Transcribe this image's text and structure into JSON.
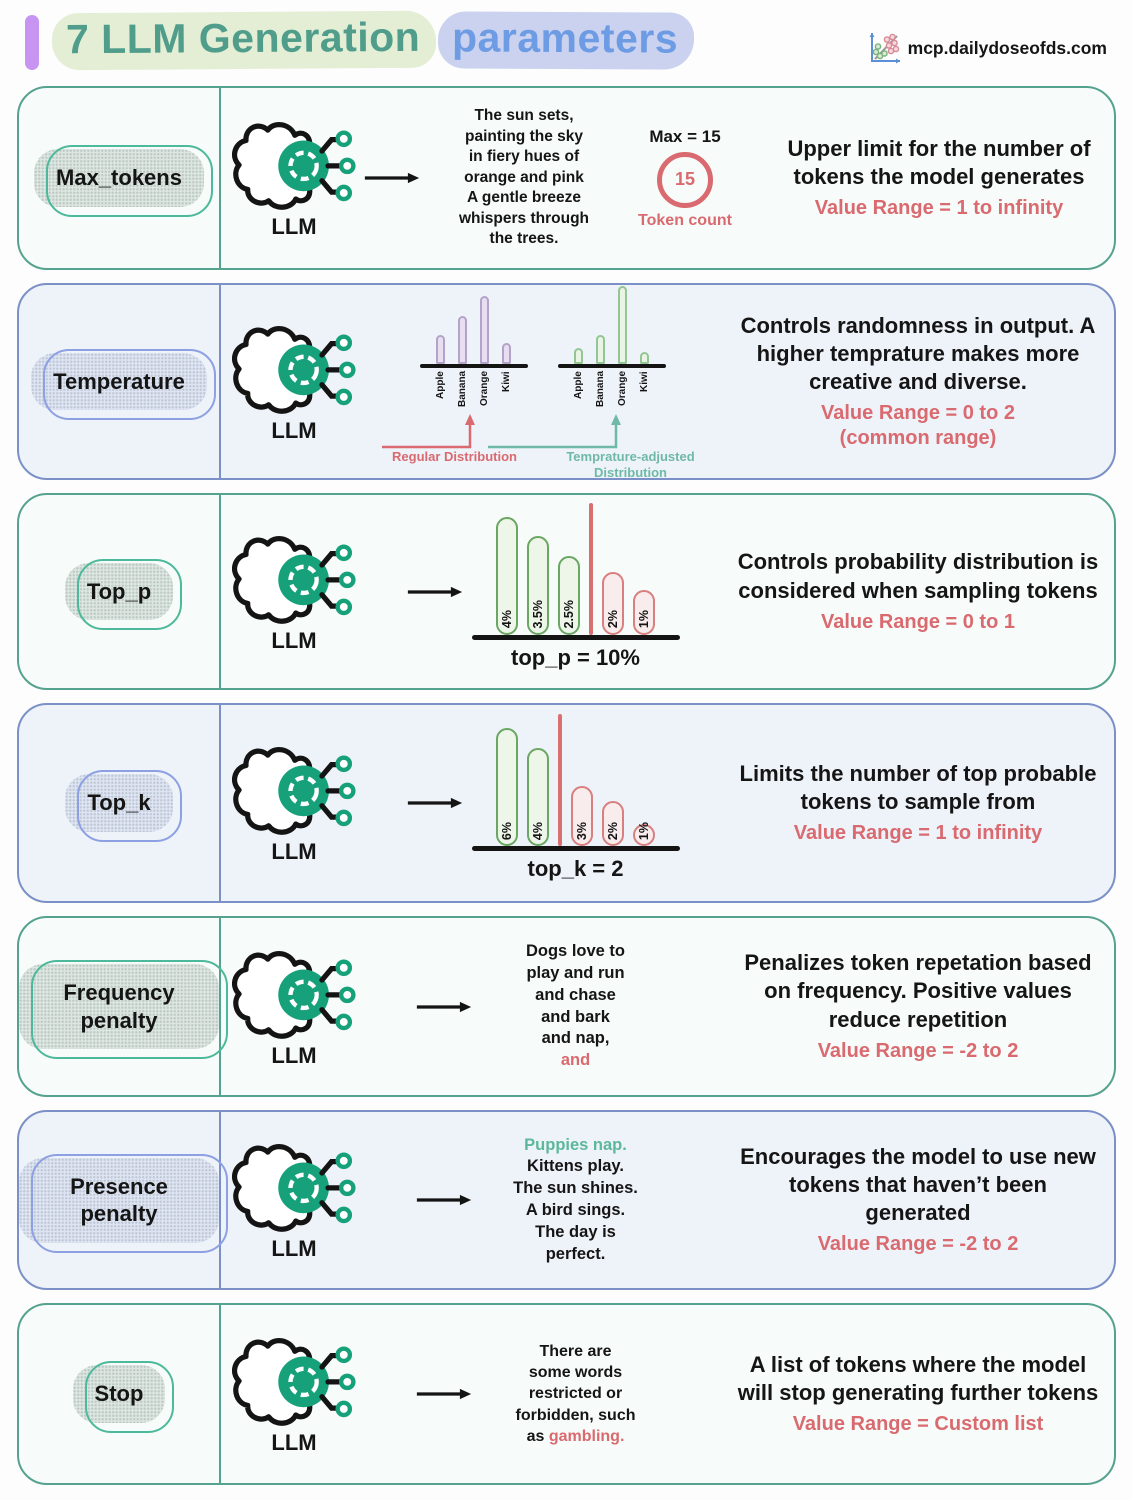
{
  "header": {
    "title_part1": "7 LLM Generation",
    "title_part2": "parameters",
    "site": "mcp.dailydoseofds.com"
  },
  "icons": {
    "llm": "brain-with-openai-logo-and-connectors",
    "arrow": "right-arrow",
    "site_logo": "scatter-plot-icon",
    "header_accent": "purple-vertical-bar"
  },
  "colors": {
    "accent_green": "#55a28e",
    "accent_blue": "#7b90c6",
    "accent_red": "#d96a6f",
    "logo_green": "#16a17b",
    "title_green": "#4f9d8a",
    "title_blue": "#6d9ce5",
    "purple_bar": "#c795f1"
  },
  "rows": [
    {
      "label": "Max_tokens",
      "llm_label": "LLM",
      "output_lines": [
        "The sun sets,",
        "painting the sky",
        "in fiery hues of",
        "orange and pink",
        "A gentle breeze",
        "whispers through",
        "the trees."
      ],
      "token_annotation": {
        "max_label": "Max = 15",
        "circle_value": "15",
        "caption": "Token count"
      },
      "description": "Upper limit for the number of tokens the model generates",
      "value_range": "Value Range = 1 to infinity"
    },
    {
      "label": "Temperature",
      "llm_label": "LLM",
      "chart_labels": {
        "regular": "Regular Distribution",
        "adjusted": "Temprature-adjusted Distribution"
      },
      "description": "Controls randomness in output. A higher temprature makes more creative and diverse.",
      "value_range": "Value Range = 0 to 2",
      "value_range_note": "(common range)"
    },
    {
      "label": "Top_p",
      "llm_label": "LLM",
      "description": "Controls probability distribution is considered when sampling tokens",
      "value_range": "Value Range = 0 to 1"
    },
    {
      "label": "Top_k",
      "llm_label": "LLM",
      "description": "Limits the number of top probable tokens to sample from",
      "value_range": "Value Range = 1 to infinity"
    },
    {
      "label": "Frequency penalty",
      "llm_label": "LLM",
      "output_lines": [
        "Dogs love to",
        "play and run",
        "and chase",
        "and bark",
        "and nap,"
      ],
      "highlight_line": "and",
      "description": "Penalizes token repetation based on frequency. Positive values reduce repetition",
      "value_range": "Value Range = -2 to 2"
    },
    {
      "label": "Presence penalty",
      "llm_label": "LLM",
      "first_line_green": "Puppies nap.",
      "output_lines": [
        "Kittens play.",
        "The sun shines.",
        "A bird sings.",
        "The day is",
        "perfect."
      ],
      "description": "Encourages the model to use new tokens that haven’t been generated",
      "value_range": "Value Range = -2 to 2"
    },
    {
      "label": "Stop",
      "llm_label": "LLM",
      "output_lines": [
        "There are",
        "some words",
        "restricted or",
        "forbidden, such"
      ],
      "last_line_prefix": "as ",
      "last_line_highlight": "gambling.",
      "description": "A list of tokens where the model will stop generating further tokens",
      "value_range": "Value Range = Custom list"
    }
  ],
  "chart_data": [
    {
      "id": "temperature_regular",
      "type": "bar",
      "title": "Regular Distribution",
      "categories": [
        "Apple",
        "Banana",
        "Orange",
        "Kiwi"
      ],
      "values": [
        37,
        61,
        87,
        27
      ],
      "ylabel": "token probability (unlabeled axis)",
      "bar_color": "#e7dff1",
      "bar_border": "#b4a3c9"
    },
    {
      "id": "temperature_adjusted",
      "type": "bar",
      "title": "Temprature-adjusted Distribution",
      "categories": [
        "Apple",
        "Banana",
        "Orange",
        "Kiwi"
      ],
      "values": [
        20,
        37,
        100,
        16
      ],
      "ylabel": "token probability (unlabeled axis)",
      "bar_color": "#e9f4e4",
      "bar_border": "#94c594"
    },
    {
      "id": "top_p",
      "type": "bar",
      "caption": "top_p = 10%",
      "bars": [
        {
          "label": "4%",
          "value": 100,
          "group": "selected"
        },
        {
          "label": "3.5%",
          "value": 84,
          "group": "selected"
        },
        {
          "label": "2.5%",
          "value": 67,
          "group": "selected"
        },
        {
          "label": "2%",
          "value": 53,
          "group": "excluded"
        },
        {
          "label": "1%",
          "value": 38,
          "group": "excluded"
        }
      ],
      "divider_after_index": 2
    },
    {
      "id": "top_k",
      "type": "bar",
      "caption": "top_k = 2",
      "bars": [
        {
          "label": "6%",
          "value": 100,
          "group": "selected"
        },
        {
          "label": "4%",
          "value": 83,
          "group": "selected"
        },
        {
          "label": "3%",
          "value": 51,
          "group": "excluded"
        },
        {
          "label": "2%",
          "value": 38,
          "group": "excluded"
        },
        {
          "label": "1%",
          "value": 17,
          "group": "excluded"
        }
      ],
      "divider_after_index": 1
    }
  ]
}
